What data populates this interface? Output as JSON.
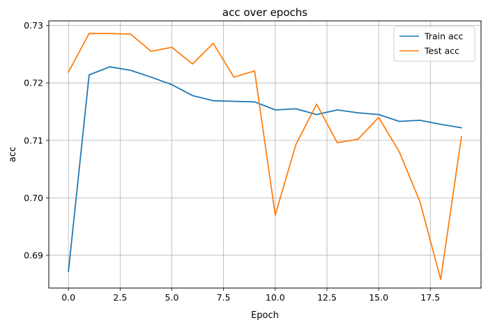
{
  "chart_data": {
    "type": "line",
    "title": "acc over epochs",
    "xlabel": "Epoch",
    "ylabel": "acc",
    "x": [
      0,
      1,
      2,
      3,
      4,
      5,
      6,
      7,
      8,
      9,
      10,
      11,
      12,
      13,
      14,
      15,
      16,
      17,
      18,
      19
    ],
    "xlim": [
      -0.95,
      19.95
    ],
    "ylim": [
      0.6843,
      0.7308
    ],
    "xticks": [
      0,
      2.5,
      5,
      7.5,
      10,
      12.5,
      15,
      17.5
    ],
    "xtick_labels": [
      "0.0",
      "2.5",
      "5.0",
      "7.5",
      "10.0",
      "12.5",
      "15.0",
      "17.5"
    ],
    "yticks": [
      0.69,
      0.7,
      0.71,
      0.72,
      0.73
    ],
    "ytick_labels": [
      "0.69",
      "0.70",
      "0.71",
      "0.72",
      "0.73"
    ],
    "grid": true,
    "legend_position": "top-right",
    "series": [
      {
        "name": "Train acc",
        "color": "#1f77b4",
        "values": [
          0.6872,
          0.7214,
          0.7228,
          0.7222,
          0.721,
          0.7197,
          0.7178,
          0.7169,
          0.7168,
          0.7167,
          0.7153,
          0.7155,
          0.7145,
          0.7153,
          0.7148,
          0.7145,
          0.7133,
          0.7135,
          0.7128,
          0.7122
        ]
      },
      {
        "name": "Test acc",
        "color": "#ff7f0e",
        "values": [
          0.7219,
          0.7286,
          0.7286,
          0.7285,
          0.7255,
          0.7262,
          0.7233,
          0.7269,
          0.721,
          0.7221,
          0.697,
          0.7093,
          0.7163,
          0.7096,
          0.7102,
          0.714,
          0.708,
          0.6993,
          0.6858,
          0.7106
        ]
      }
    ]
  }
}
